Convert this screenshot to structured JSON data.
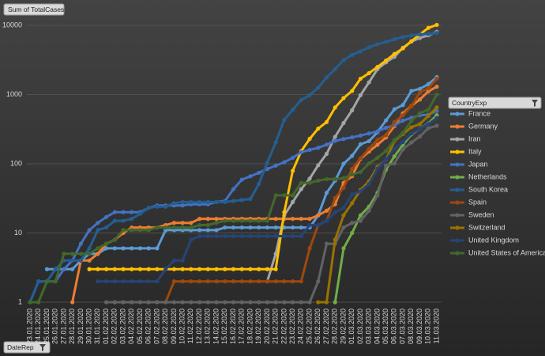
{
  "chart_data": {
    "type": "line",
    "y_field": "Sum of TotalCases",
    "x_field": "DateRep",
    "legend_title": "CountryExp",
    "log_scale": true,
    "grid": true,
    "legend_position": "right",
    "ylim": [
      1,
      10000
    ],
    "yticks": [
      1,
      10,
      100,
      1000,
      10000
    ],
    "categories": [
      "23.01.2020",
      "24.01.2020",
      "25.01.2020",
      "26.01.2020",
      "27.01.2020",
      "28.01.2020",
      "29.01.2020",
      "30.01.2020",
      "31.01.2020",
      "01.02.2020",
      "02.02.2020",
      "03.02.2020",
      "04.02.2020",
      "05.02.2020",
      "06.02.2020",
      "07.02.2020",
      "08.02.2020",
      "09.02.2020",
      "10.02.2020",
      "11.02.2020",
      "12.02.2020",
      "13.02.2020",
      "14.02.2020",
      "15.02.2020",
      "16.02.2020",
      "17.02.2020",
      "18.02.2020",
      "19.02.2020",
      "20.02.2020",
      "21.02.2020",
      "22.02.2020",
      "23.02.2020",
      "24.02.2020",
      "25.02.2020",
      "26.02.2020",
      "27.02.2020",
      "28.02.2020",
      "29.02.2020",
      "01.03.2020",
      "02.03.2020",
      "03.03.2020",
      "04.03.2020",
      "05.03.2020",
      "06.03.2020",
      "07.03.2020",
      "08.03.2020",
      "09.03.2020",
      "10.03.2020",
      "11.03.2020"
    ],
    "series": [
      {
        "name": "France",
        "color": "#5b9bd5",
        "values": [
          null,
          null,
          3,
          3,
          3,
          3,
          4,
          5,
          5,
          6,
          6,
          6,
          6,
          6,
          6,
          6,
          11,
          11,
          11,
          11,
          11,
          11,
          11,
          12,
          12,
          12,
          12,
          12,
          12,
          12,
          12,
          12,
          12,
          12,
          18,
          38,
          57,
          100,
          130,
          191,
          212,
          285,
          423,
          613,
          706,
          1126,
          1209,
          1412,
          1784
        ]
      },
      {
        "name": "Germany",
        "color": "#ed7d31",
        "values": [
          null,
          null,
          null,
          null,
          null,
          1,
          4,
          4,
          5,
          7,
          8,
          10,
          12,
          12,
          12,
          12,
          13,
          14,
          14,
          14,
          16,
          16,
          16,
          16,
          16,
          16,
          16,
          16,
          16,
          16,
          16,
          16,
          16,
          16,
          18,
          21,
          26,
          53,
          66,
          117,
          150,
          188,
          240,
          349,
          534,
          684,
          847,
          1112,
          1296
        ]
      },
      {
        "name": "Iran",
        "color": "#a5a5a5",
        "values": [
          null,
          null,
          null,
          null,
          null,
          null,
          null,
          null,
          null,
          null,
          null,
          null,
          null,
          null,
          null,
          null,
          null,
          null,
          null,
          null,
          null,
          null,
          null,
          null,
          null,
          null,
          null,
          null,
          2,
          5,
          18,
          28,
          43,
          61,
          95,
          139,
          245,
          388,
          593,
          978,
          1501,
          2336,
          2922,
          3513,
          4747,
          5823,
          6566,
          7161,
          8042
        ]
      },
      {
        "name": "Italy",
        "color": "#ffc000",
        "values": [
          null,
          null,
          null,
          null,
          null,
          null,
          null,
          3,
          3,
          3,
          3,
          3,
          3,
          3,
          3,
          3,
          3,
          3,
          3,
          3,
          3,
          3,
          3,
          3,
          3,
          3,
          3,
          3,
          3,
          3,
          20,
          79,
          152,
          229,
          322,
          400,
          650,
          888,
          1128,
          1694,
          2036,
          2502,
          3089,
          3858,
          4636,
          5883,
          7375,
          9172,
          10149
        ]
      },
      {
        "name": "Japan",
        "color": "#4472c4",
        "values": [
          1,
          2,
          2,
          2,
          3,
          4,
          7,
          11,
          14,
          17,
          20,
          20,
          20,
          20,
          23,
          25,
          25,
          25,
          25,
          26,
          26,
          26,
          28,
          29,
          43,
          59,
          66,
          74,
          84,
          94,
          105,
          122,
          147,
          159,
          170,
          189,
          214,
          228,
          241,
          256,
          274,
          293,
          331,
          360,
          420,
          461,
          502,
          511,
          581
        ]
      },
      {
        "name": "Netherlands",
        "color": "#70ad47",
        "values": [
          null,
          null,
          null,
          null,
          null,
          null,
          null,
          null,
          null,
          null,
          null,
          null,
          null,
          null,
          null,
          null,
          null,
          null,
          null,
          null,
          null,
          null,
          null,
          null,
          null,
          null,
          null,
          null,
          null,
          null,
          null,
          null,
          null,
          null,
          null,
          null,
          1,
          6,
          10,
          18,
          24,
          38,
          82,
          128,
          188,
          265,
          321,
          382,
          503
        ]
      },
      {
        "name": "South Korea",
        "color": "#255e91",
        "values": [
          1,
          2,
          2,
          3,
          4,
          4,
          4,
          6,
          11,
          12,
          15,
          15,
          16,
          19,
          23,
          24,
          24,
          27,
          28,
          28,
          28,
          28,
          28,
          28,
          29,
          30,
          31,
          51,
          104,
          204,
          433,
          602,
          833,
          977,
          1261,
          1766,
          2337,
          3150,
          3736,
          4212,
          4812,
          5328,
          5766,
          6284,
          6767,
          7134,
          7382,
          7513,
          7755
        ]
      },
      {
        "name": "Spain",
        "color": "#9e480e",
        "values": [
          null,
          null,
          null,
          null,
          null,
          null,
          null,
          null,
          null,
          1,
          1,
          1,
          1,
          1,
          1,
          1,
          1,
          2,
          2,
          2,
          2,
          2,
          2,
          2,
          2,
          2,
          2,
          2,
          2,
          2,
          2,
          2,
          2,
          6,
          13,
          15,
          32,
          45,
          84,
          120,
          165,
          222,
          259,
          400,
          500,
          673,
          1073,
          1231,
          1695
        ]
      },
      {
        "name": "Sweden",
        "color": "#636363",
        "values": [
          null,
          null,
          null,
          null,
          null,
          null,
          null,
          null,
          null,
          1,
          1,
          1,
          1,
          1,
          1,
          1,
          1,
          1,
          1,
          1,
          1,
          1,
          1,
          1,
          1,
          1,
          1,
          1,
          1,
          1,
          1,
          1,
          1,
          1,
          2,
          7,
          7,
          12,
          14,
          15,
          21,
          35,
          94,
          101,
          161,
          203,
          248,
          326,
          355
        ]
      },
      {
        "name": "Switzerland",
        "color": "#997300",
        "values": [
          null,
          null,
          null,
          null,
          null,
          null,
          null,
          null,
          null,
          null,
          null,
          null,
          null,
          null,
          null,
          null,
          null,
          null,
          null,
          null,
          null,
          null,
          null,
          null,
          null,
          null,
          null,
          null,
          null,
          null,
          null,
          null,
          null,
          null,
          1,
          1,
          8,
          18,
          27,
          42,
          56,
          90,
          114,
          214,
          268,
          337,
          374,
          491,
          652
        ]
      },
      {
        "name": "United Kingdom",
        "color": "#264478",
        "values": [
          null,
          null,
          null,
          null,
          null,
          null,
          null,
          null,
          2,
          2,
          2,
          2,
          2,
          2,
          2,
          2,
          3,
          4,
          4,
          8,
          9,
          9,
          9,
          9,
          9,
          9,
          9,
          9,
          9,
          9,
          9,
          9,
          9,
          13,
          13,
          15,
          20,
          23,
          36,
          40,
          51,
          85,
          115,
          163,
          206,
          273,
          321,
          373,
          456
        ]
      },
      {
        "name": "United States of America",
        "color": "#43682b",
        "values": [
          1,
          1,
          2,
          2,
          5,
          5,
          5,
          5,
          6,
          7,
          8,
          11,
          11,
          11,
          11,
          12,
          12,
          12,
          12,
          12,
          13,
          13,
          14,
          15,
          15,
          15,
          15,
          15,
          15,
          35,
          35,
          35,
          53,
          53,
          57,
          60,
          60,
          62,
          70,
          76,
          101,
          122,
          153,
          221,
          278,
          417,
          537,
          605,
          1000
        ]
      }
    ]
  }
}
